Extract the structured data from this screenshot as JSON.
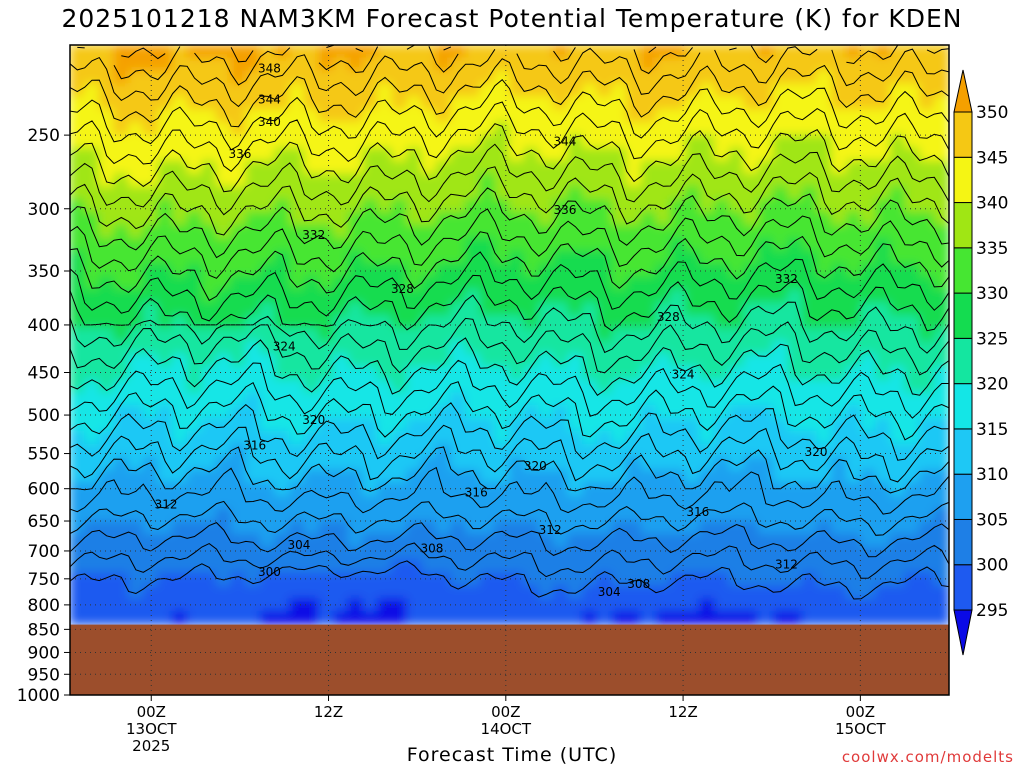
{
  "chart_data": {
    "type": "heatmap",
    "title": "2025101218 NAM3KM Forecast Potential Temperature (K) for KDEN",
    "xlabel": "Forecast Time (UTC)",
    "ylabel": "",
    "credit": "coolwx.com/modelts",
    "y_scale": "log-pressure",
    "y_range": [
      1000,
      200
    ],
    "y_ticks": [
      250,
      300,
      350,
      400,
      450,
      500,
      550,
      600,
      650,
      700,
      750,
      800,
      850,
      900,
      950,
      1000
    ],
    "x_range_hours": [
      -5.5,
      54
    ],
    "x_ticks": [
      {
        "hours": 0,
        "lines": [
          "00Z",
          "13OCT",
          "2025"
        ]
      },
      {
        "hours": 12,
        "lines": [
          "12Z"
        ]
      },
      {
        "hours": 24,
        "lines": [
          "00Z",
          "14OCT"
        ]
      },
      {
        "hours": 36,
        "lines": [
          "12Z"
        ]
      },
      {
        "hours": 48,
        "lines": [
          "00Z",
          "15OCT"
        ]
      }
    ],
    "grid": true,
    "colorbar": {
      "position": "right",
      "levels": [
        295,
        300,
        305,
        310,
        315,
        320,
        325,
        330,
        335,
        340,
        345,
        350
      ],
      "colors": [
        "#0a0ae6",
        "#1e5af0",
        "#1e7fe6",
        "#1ea0f0",
        "#1ec8f5",
        "#14e6e6",
        "#14e6a0",
        "#14dc50",
        "#46e632",
        "#a0e614",
        "#f5f514",
        "#f5c814",
        "#f5a000"
      ]
    },
    "surface": {
      "pressure_hpa": 840,
      "color": "#9c4e2c"
    },
    "contour_labels": [
      {
        "value": 348,
        "hours": 8,
        "p": 212
      },
      {
        "value": 344,
        "hours": 8,
        "p": 229
      },
      {
        "value": 340,
        "hours": 8,
        "p": 242
      },
      {
        "value": 336,
        "hours": 6,
        "p": 262
      },
      {
        "value": 344,
        "hours": 28,
        "p": 254
      },
      {
        "value": 336,
        "hours": 28,
        "p": 301
      },
      {
        "value": 332,
        "hours": 11,
        "p": 320
      },
      {
        "value": 332,
        "hours": 43,
        "p": 357
      },
      {
        "value": 328,
        "hours": 17,
        "p": 366
      },
      {
        "value": 328,
        "hours": 35,
        "p": 392
      },
      {
        "value": 324,
        "hours": 9,
        "p": 422
      },
      {
        "value": 324,
        "hours": 36,
        "p": 452
      },
      {
        "value": 320,
        "hours": 11,
        "p": 506
      },
      {
        "value": 320,
        "hours": 26,
        "p": 567
      },
      {
        "value": 320,
        "hours": 45,
        "p": 548
      },
      {
        "value": 316,
        "hours": 7,
        "p": 539
      },
      {
        "value": 316,
        "hours": 22,
        "p": 606
      },
      {
        "value": 316,
        "hours": 37,
        "p": 636
      },
      {
        "value": 312,
        "hours": 1,
        "p": 624
      },
      {
        "value": 312,
        "hours": 27,
        "p": 665
      },
      {
        "value": 312,
        "hours": 43,
        "p": 724
      },
      {
        "value": 308,
        "hours": 19,
        "p": 696
      },
      {
        "value": 308,
        "hours": 33,
        "p": 760
      },
      {
        "value": 304,
        "hours": 10,
        "p": 690
      },
      {
        "value": 304,
        "hours": 31,
        "p": 775
      },
      {
        "value": 300,
        "hours": 8,
        "p": 737
      }
    ]
  }
}
